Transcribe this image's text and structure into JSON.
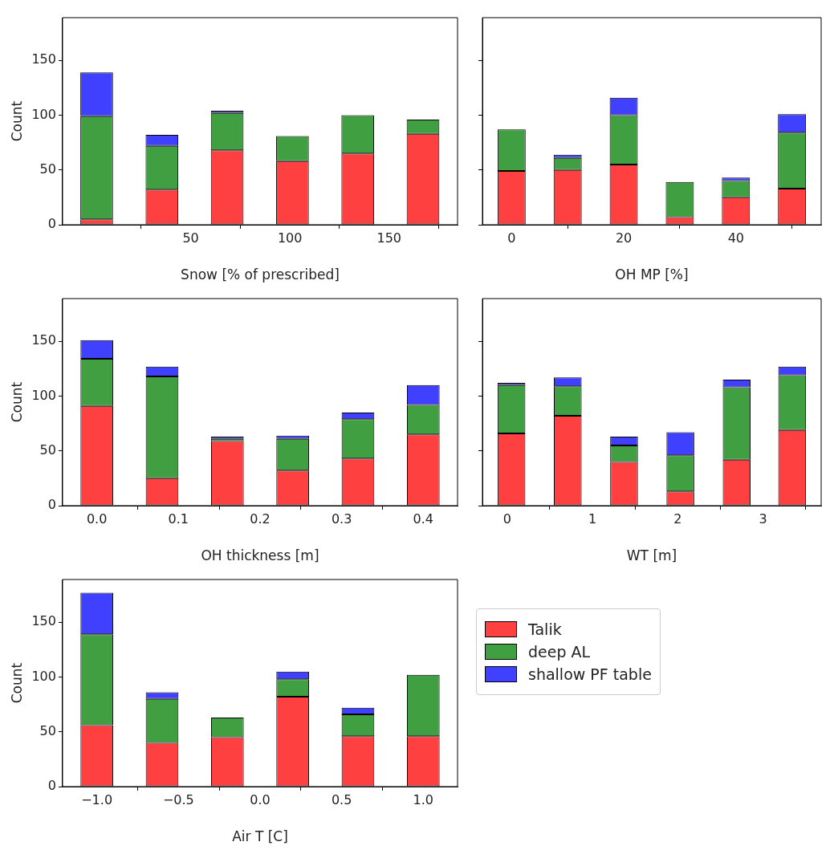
{
  "chart_data": [
    {
      "type": "bar",
      "stacked": true,
      "xlabel": "Snow [% of prescribed]",
      "ylabel": "Count",
      "x": [
        2.6,
        35.5,
        68.4,
        101.3,
        134.2,
        167.1
      ],
      "xlim": [
        -14.6,
        184.5
      ],
      "xticks": [
        50,
        100,
        150
      ],
      "ylim": [
        0,
        189
      ],
      "yticks": [
        0,
        50,
        100,
        150
      ],
      "series": [
        {
          "color": "#ff4040",
          "values": [
            5,
            32,
            68,
            58,
            65,
            83
          ]
        },
        {
          "color": "#409f40",
          "values": [
            94,
            40,
            34,
            23,
            35,
            13
          ]
        },
        {
          "color": "#4040ff",
          "values": [
            40,
            10,
            2,
            0,
            0,
            0
          ]
        }
      ]
    },
    {
      "type": "bar",
      "stacked": true,
      "xlabel": "OH MP [%]",
      "x": [
        0,
        10,
        20,
        30,
        40,
        50
      ],
      "xlim": [
        -5.2,
        55.2
      ],
      "xticks": [
        0,
        20,
        40
      ],
      "ylim": [
        0,
        189
      ],
      "yticks": [
        0,
        50,
        100,
        150
      ],
      "tick_labels": "x",
      "series": [
        {
          "color": "#ff4040",
          "values": [
            49,
            50,
            55,
            7,
            25,
            33
          ]
        },
        {
          "color": "#409f40",
          "values": [
            38,
            11,
            45,
            32,
            15,
            51
          ]
        },
        {
          "color": "#4040ff",
          "values": [
            0,
            3,
            16,
            0,
            3,
            17
          ]
        }
      ]
    },
    {
      "type": "bar",
      "stacked": true,
      "xlabel": "OH thickness [m]",
      "ylabel": "Count",
      "x": [
        0,
        0.08,
        0.16,
        0.24,
        0.32,
        0.4
      ],
      "xlim": [
        -0.042,
        0.442
      ],
      "xticks": [
        {
          "value": 0,
          "label": "0.0"
        },
        0.1,
        0.2,
        0.3,
        0.4
      ],
      "ylim": [
        0,
        189
      ],
      "yticks": [
        0,
        50,
        100,
        150
      ],
      "series": [
        {
          "color": "#ff4040",
          "values": [
            91,
            25,
            59,
            32,
            43,
            65
          ]
        },
        {
          "color": "#409f40",
          "values": [
            43,
            93,
            2,
            29,
            36,
            27
          ]
        },
        {
          "color": "#4040ff",
          "values": [
            17,
            9,
            2,
            3,
            6,
            18
          ]
        }
      ]
    },
    {
      "type": "bar",
      "stacked": true,
      "xlabel": "WT [m]",
      "x": [
        0.05,
        0.71,
        1.37,
        2.03,
        2.69,
        3.34
      ],
      "xlim": [
        -0.29,
        3.68
      ],
      "xticks": [
        0,
        1,
        2,
        3
      ],
      "ylim": [
        0,
        189
      ],
      "yticks": [
        0,
        50,
        100,
        150
      ],
      "tick_labels": "x",
      "series": [
        {
          "color": "#ff4040",
          "values": [
            66,
            82,
            40,
            13,
            42,
            69
          ]
        },
        {
          "color": "#409f40",
          "values": [
            44,
            27,
            15,
            33,
            66,
            50
          ]
        },
        {
          "color": "#4040ff",
          "values": [
            2,
            8,
            8,
            21,
            7,
            8
          ]
        }
      ]
    },
    {
      "type": "bar",
      "stacked": true,
      "xlabel": "Air T [C]",
      "ylabel": "Count",
      "x": [
        -1,
        -0.6,
        -0.2,
        0.2,
        0.6,
        1
      ],
      "xlim": [
        -1.21,
        1.21
      ],
      "xticks": [
        {
          "value": -1,
          "label": "−1.0"
        },
        {
          "value": -0.5,
          "label": "−0.5"
        },
        {
          "value": 0,
          "label": "0.0"
        },
        0.5,
        {
          "value": 1,
          "label": "1.0"
        }
      ],
      "ylim": [
        0,
        189
      ],
      "yticks": [
        0,
        50,
        100,
        150
      ],
      "legend": "right",
      "series": [
        {
          "name": "Talik",
          "color": "#ff4040",
          "values": [
            56,
            40,
            45,
            82,
            46,
            46
          ]
        },
        {
          "name": "deep AL",
          "color": "#409f40",
          "values": [
            83,
            40,
            18,
            16,
            20,
            56
          ]
        },
        {
          "name": "shallow PF table",
          "color": "#4040ff",
          "values": [
            38,
            6,
            0,
            7,
            6,
            0
          ]
        }
      ]
    }
  ]
}
